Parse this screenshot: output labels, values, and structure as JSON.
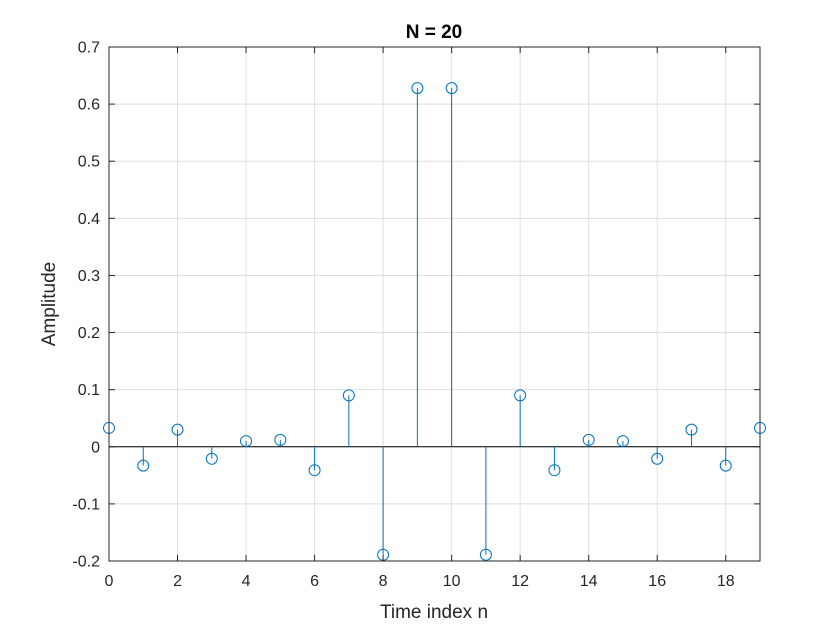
{
  "chart_data": {
    "type": "stem",
    "title": "N = 20",
    "xlabel": "Time index n",
    "ylabel": "Amplitude",
    "xlim": [
      0,
      19
    ],
    "ylim": [
      -0.2,
      0.7
    ],
    "grid": true,
    "x_ticks": [
      0,
      2,
      4,
      6,
      8,
      10,
      12,
      14,
      16,
      18
    ],
    "x_tick_labels": [
      "0",
      "2",
      "4",
      "6",
      "8",
      "10",
      "12",
      "14",
      "16",
      "18"
    ],
    "y_ticks": [
      -0.2,
      -0.1,
      0,
      0.1,
      0.2,
      0.3,
      0.4,
      0.5,
      0.6,
      0.7
    ],
    "y_tick_labels": [
      "-0.2",
      "-0.1",
      "0",
      "0.1",
      "0.2",
      "0.3",
      "0.4",
      "0.5",
      "0.6",
      "0.7"
    ],
    "x": [
      0,
      1,
      2,
      3,
      4,
      5,
      6,
      7,
      8,
      9,
      10,
      11,
      12,
      13,
      14,
      15,
      16,
      17,
      18,
      19
    ],
    "values": [
      0.033,
      -0.033,
      0.03,
      -0.021,
      0.01,
      0.012,
      -0.041,
      0.09,
      -0.189,
      0.628,
      0.628,
      -0.189,
      0.09,
      -0.041,
      0.012,
      0.01,
      -0.021,
      0.03,
      -0.033,
      0.033
    ],
    "colors": {
      "stem": "#0072BD",
      "grid": "#dedede",
      "axis": "#262626"
    }
  }
}
